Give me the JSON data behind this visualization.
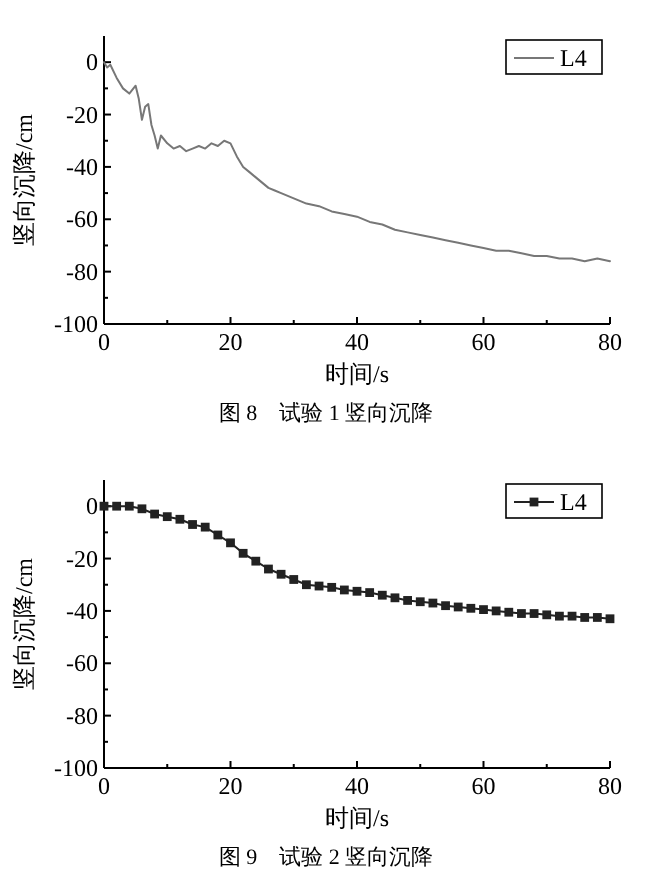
{
  "chart_data": [
    {
      "type": "line",
      "xlabel": "时间/s",
      "ylabel": "竖向沉降/cm",
      "annotations": [
        "图 8　试验 1 竖向沉降"
      ],
      "legend": "top right",
      "line_style": "solid",
      "x": [
        0,
        0.5,
        1,
        2,
        3,
        4,
        5,
        5.5,
        6,
        6.5,
        7,
        7.5,
        8,
        8.5,
        9,
        10,
        11,
        12,
        13,
        14,
        15,
        16,
        17,
        18,
        19,
        20,
        21,
        22,
        23,
        24,
        25,
        26,
        27,
        28,
        30,
        32,
        34,
        36,
        38,
        40,
        42,
        44,
        46,
        48,
        50,
        52,
        54,
        56,
        58,
        60,
        62,
        64,
        66,
        68,
        70,
        72,
        74,
        76,
        78,
        80
      ],
      "series": [
        {
          "name": "L4",
          "color": "#777777",
          "values": [
            0,
            -2,
            -1,
            -6,
            -10,
            -12,
            -9,
            -14,
            -22,
            -17,
            -16,
            -24,
            -28,
            -33,
            -28,
            -31,
            -33,
            -32,
            -34,
            -33,
            -32,
            -33,
            -31,
            -32,
            -30,
            -31,
            -36,
            -40,
            -42,
            -44,
            -46,
            -48,
            -49,
            -50,
            -52,
            -54,
            -55,
            -57,
            -58,
            -59,
            -61,
            -62,
            -64,
            -65,
            -66,
            -67,
            -68,
            -69,
            -70,
            -71,
            -72,
            -72,
            -73,
            -74,
            -74,
            -75,
            -75,
            -76,
            -75,
            -76
          ]
        }
      ],
      "xlim": [
        0,
        80
      ],
      "ylim": [
        -100,
        10
      ],
      "xticks": [
        0,
        {
          "value": 10,
          "label": null
        },
        20,
        {
          "value": 30,
          "label": null
        },
        40,
        {
          "value": 50,
          "label": null
        },
        60,
        {
          "value": 70,
          "label": null
        },
        80
      ],
      "yticks": [
        -100,
        {
          "value": -90,
          "label": null
        },
        -80,
        {
          "value": -70,
          "label": null
        },
        -60,
        {
          "value": -50,
          "label": null
        },
        -40,
        {
          "value": -30,
          "label": null
        },
        -20,
        {
          "value": -10,
          "label": null
        },
        0
      ]
    },
    {
      "type": "line",
      "xlabel": "时间/s",
      "ylabel": "竖向沉降/cm",
      "annotations": [
        "图 9　试验 2 竖向沉降"
      ],
      "legend": "top right",
      "line_style": "solid",
      "marker": "square",
      "x": [
        0,
        2,
        4,
        6,
        8,
        10,
        12,
        14,
        16,
        18,
        20,
        22,
        24,
        26,
        28,
        30,
        32,
        34,
        36,
        38,
        40,
        42,
        44,
        46,
        48,
        50,
        52,
        54,
        56,
        58,
        60,
        62,
        64,
        66,
        68,
        70,
        72,
        74,
        76,
        78,
        80
      ],
      "series": [
        {
          "name": "L4",
          "color": "#222222",
          "values": [
            0,
            0,
            0,
            -1,
            -3,
            -4,
            -5,
            -7,
            -8,
            -11,
            -14,
            -18,
            -21,
            -24,
            -26,
            -28,
            -30,
            -30.5,
            -31,
            -32,
            -32.5,
            -33,
            -34,
            -35,
            -36,
            -36.5,
            -37,
            -38,
            -38.5,
            -39,
            -39.5,
            -40,
            -40.5,
            -41,
            -41,
            -41.5,
            -42,
            -42,
            -42.5,
            -42.5,
            -43
          ]
        }
      ],
      "xlim": [
        0,
        80
      ],
      "ylim": [
        -100,
        10
      ],
      "xticks": [
        0,
        {
          "value": 10,
          "label": null
        },
        20,
        {
          "value": 30,
          "label": null
        },
        40,
        {
          "value": 50,
          "label": null
        },
        60,
        {
          "value": 70,
          "label": null
        },
        80
      ],
      "yticks": [
        -100,
        {
          "value": -90,
          "label": null
        },
        -80,
        {
          "value": -70,
          "label": null
        },
        -60,
        {
          "value": -50,
          "label": null
        },
        -40,
        {
          "value": -30,
          "label": null
        },
        -20,
        {
          "value": -10,
          "label": null
        },
        0
      ]
    }
  ]
}
